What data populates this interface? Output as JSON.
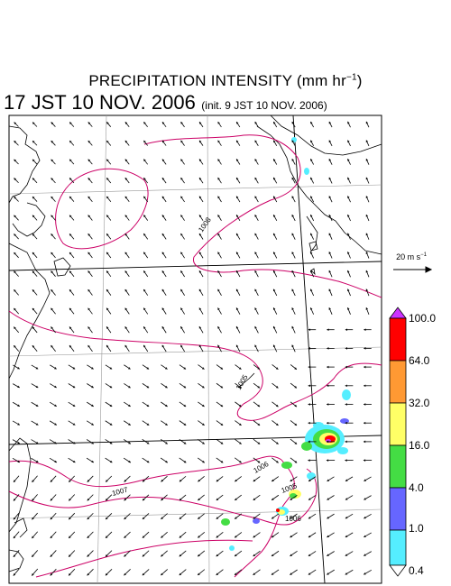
{
  "title": {
    "main": "PRECIPITATION INTENSITY (mm hr",
    "exp": "−1",
    "close": ")"
  },
  "subtitle": {
    "time": "17 JST 10 NOV. 2006",
    "init": "(init. 9 JST 10 NOV. 2006)"
  },
  "wind_reference": {
    "label": "20 m s",
    "exp": "−1"
  },
  "colorbar": {
    "ticks": [
      "100.0",
      "64.0",
      "32.0",
      "16.0",
      "4.0",
      "1.0",
      "0.4"
    ],
    "colors": [
      "#cc33ff",
      "#ff0000",
      "#ff9933",
      "#ffff66",
      "#44dd44",
      "#6666ff",
      "#55eeff",
      "#ffffff"
    ]
  },
  "isobars": [
    {
      "label": "1008"
    },
    {
      "label": "1005"
    },
    {
      "label": "1006"
    },
    {
      "label": "1005"
    },
    {
      "label": "1006"
    },
    {
      "label": "1007"
    }
  ],
  "colors": {
    "isobar": "#cc0066",
    "coast": "#000000",
    "grid": "#999999",
    "arrow": "#000000"
  }
}
